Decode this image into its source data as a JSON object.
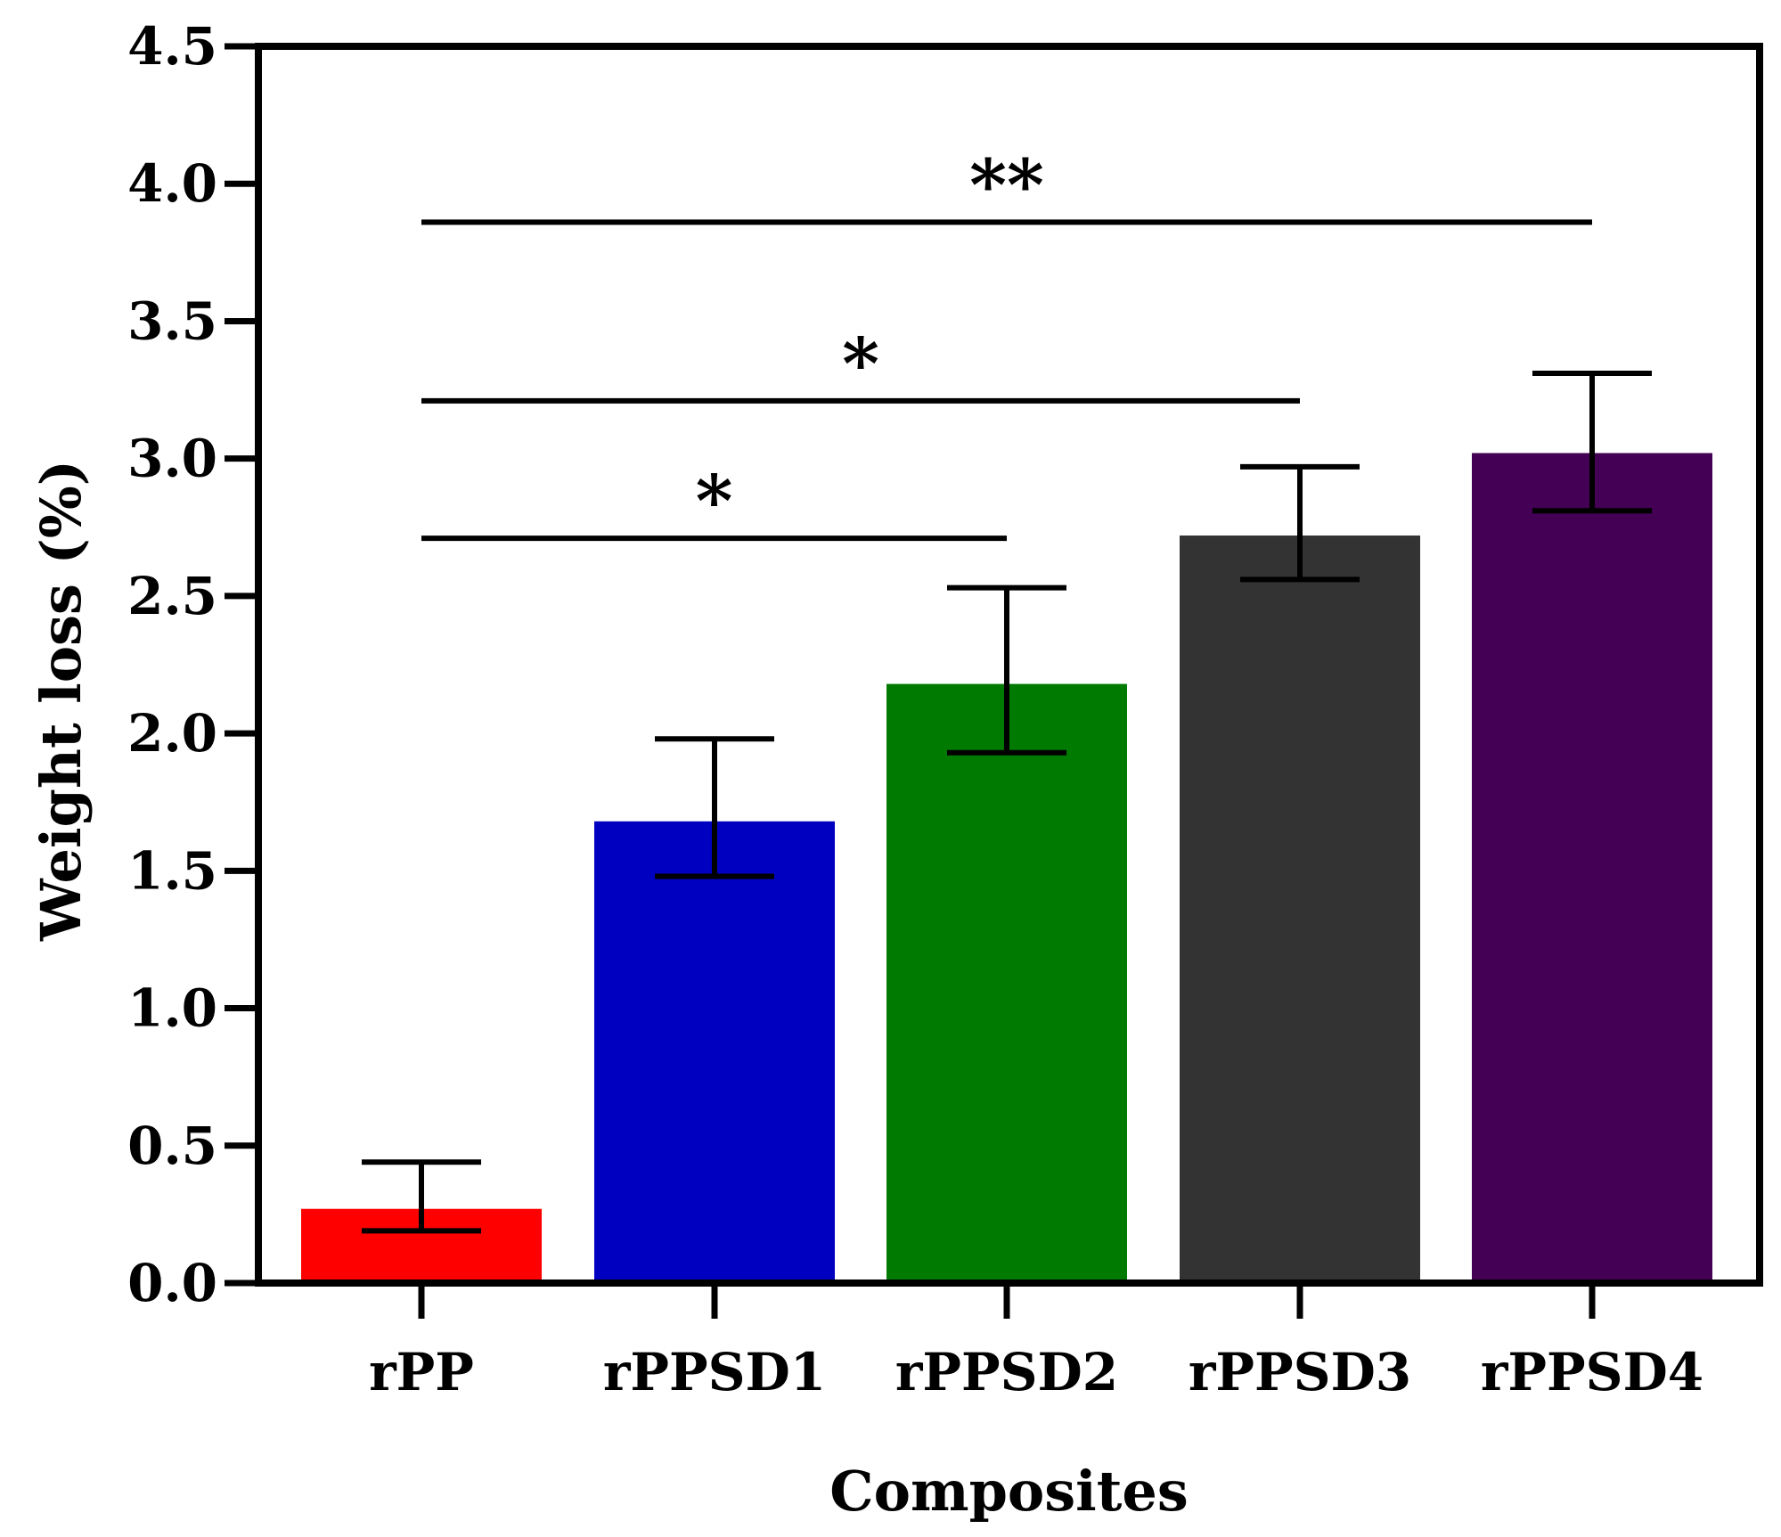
{
  "chart_data": {
    "type": "bar",
    "xlabel": "Composites",
    "ylabel": "Weight loss (%)",
    "ylim": [
      0,
      4.5
    ],
    "yticks": [
      "0.0",
      "0.5",
      "1.0",
      "1.5",
      "2.0",
      "2.5",
      "3.0",
      "3.5",
      "4.0",
      "4.5"
    ],
    "categories": [
      "rPP",
      "rPPSD1",
      "rPPSD2",
      "rPPSD3",
      "rPPSD4"
    ],
    "values": [
      0.27,
      1.68,
      2.18,
      2.72,
      3.02
    ],
    "error_low": [
      0.19,
      1.48,
      1.93,
      2.56,
      2.81
    ],
    "error_high": [
      0.44,
      1.98,
      2.53,
      2.97,
      3.31
    ],
    "colors": [
      "#ff0000",
      "#0000c0",
      "#007a00",
      "#333333",
      "#440055"
    ],
    "significance": [
      {
        "from": 0,
        "to": 2,
        "y": 2.71,
        "label": "*"
      },
      {
        "from": 0,
        "to": 3,
        "y": 3.21,
        "label": "*"
      },
      {
        "from": 0,
        "to": 4,
        "y": 3.86,
        "label": "**"
      }
    ],
    "grid": false
  }
}
